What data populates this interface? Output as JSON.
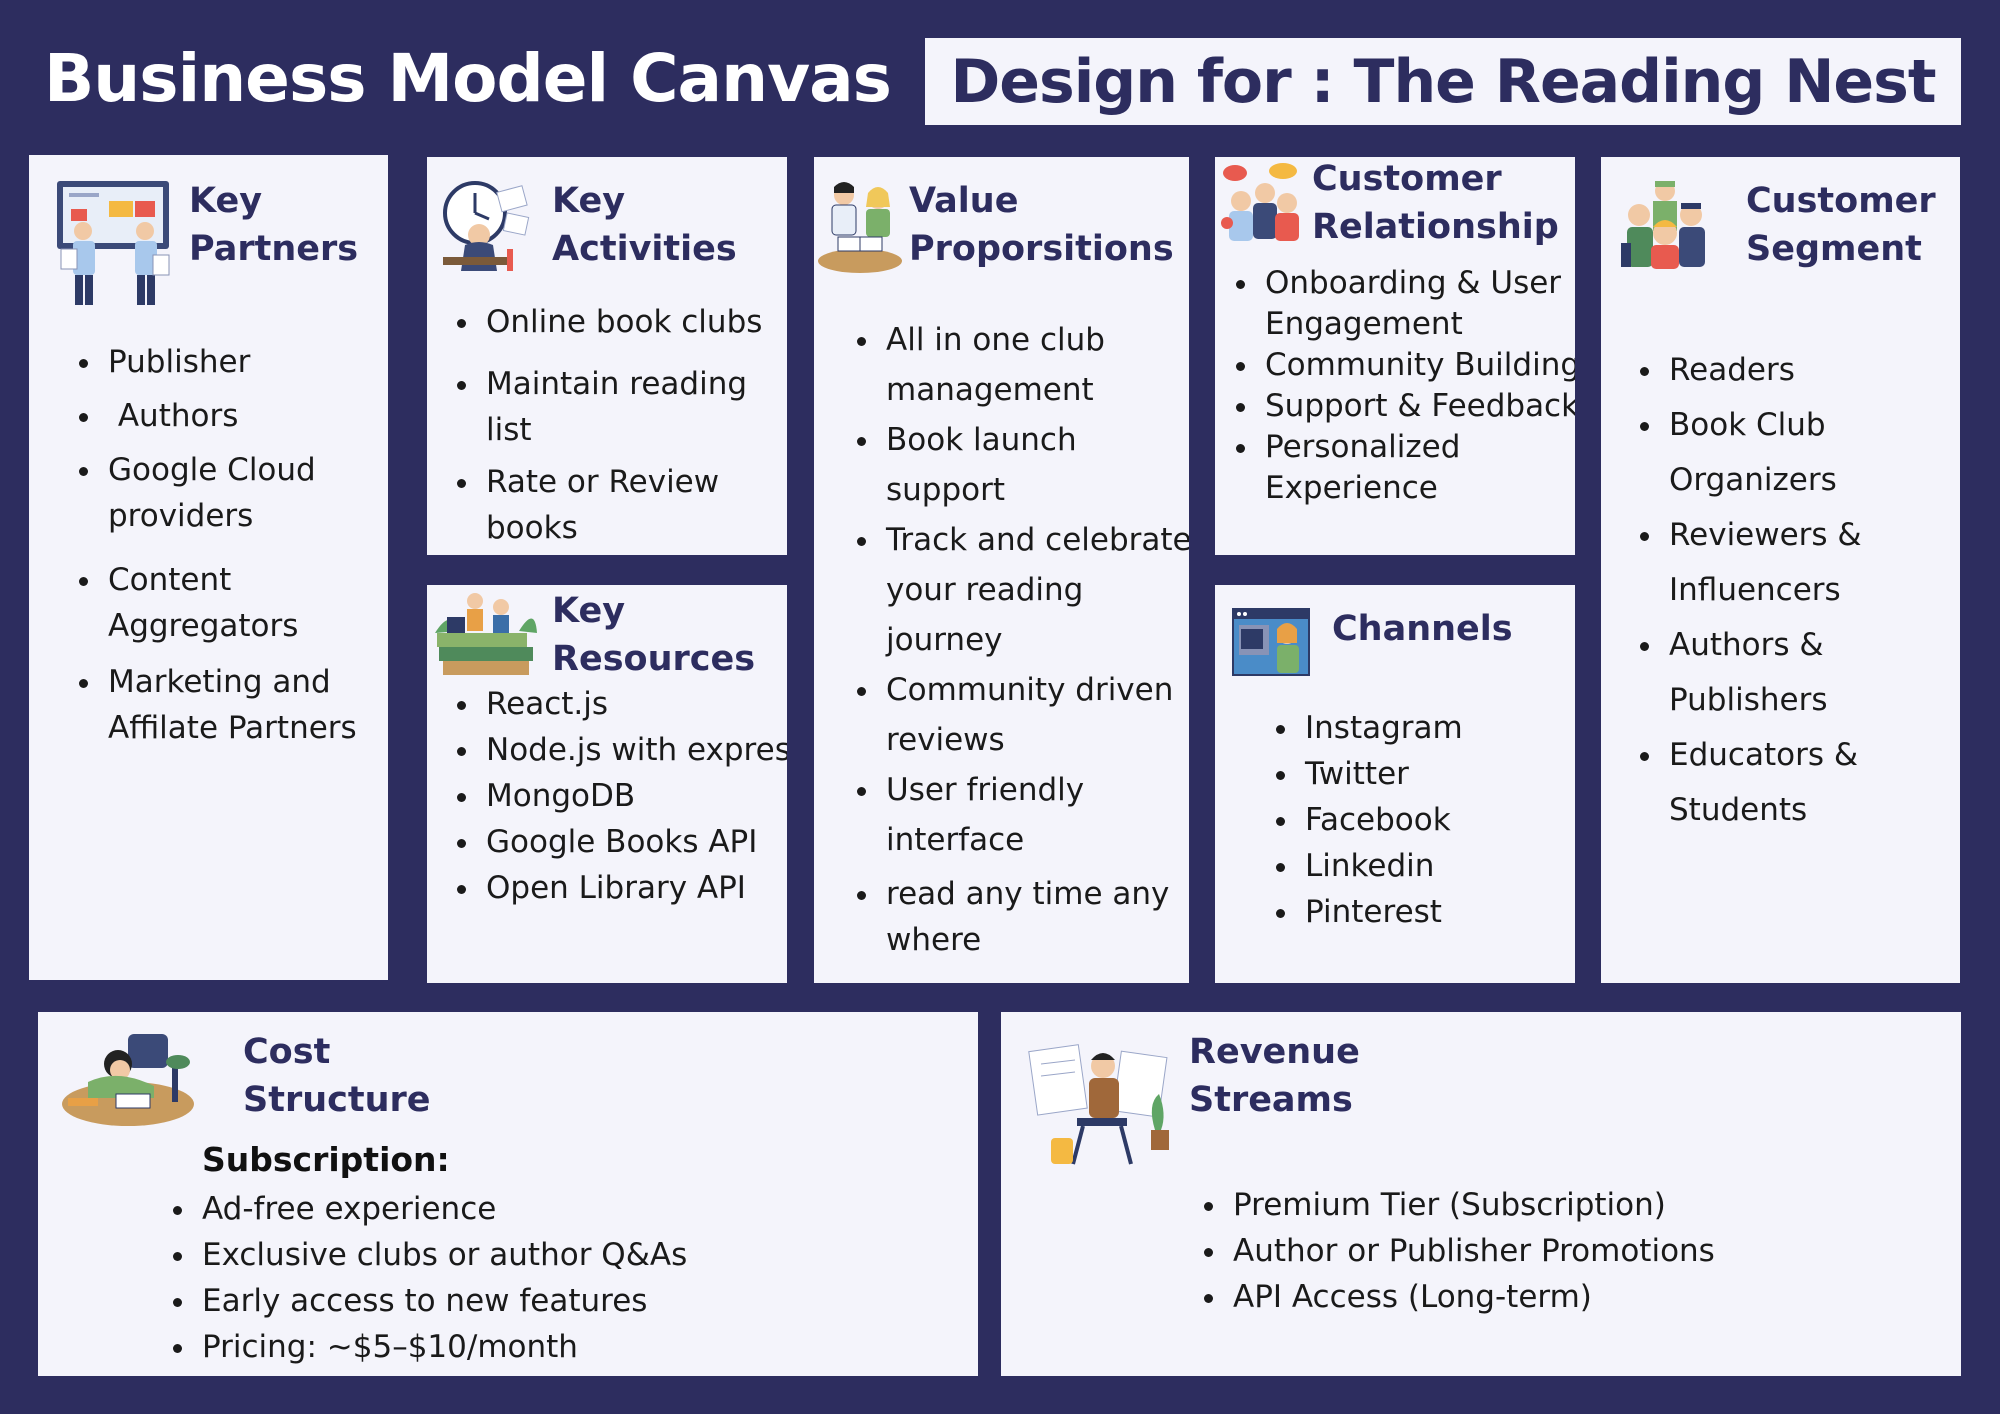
{
  "header": {
    "title": "Business Model Canvas",
    "design_for": "Design for : The Reading Nest"
  },
  "sections": {
    "key_partners": {
      "title_l1": "Key",
      "title_l2": "Partners",
      "icon": "strategy-meeting-icon",
      "items": [
        "Publisher",
        " Authors",
        "Google Cloud providers",
        "Content Aggregators",
        "Marketing and Affilate Partners"
      ]
    },
    "key_activities": {
      "title_l1": "Key",
      "title_l2": "Activities",
      "icon": "time-management-icon",
      "items": [
        "Online book clubs",
        "Maintain reading list",
        "Rate or Review books"
      ]
    },
    "key_resources": {
      "title_l1": "Key",
      "title_l2": "Resources",
      "icon": "books-stack-icon",
      "items": [
        "React.js",
        "Node.js with express",
        "MongoDB",
        "Google Books API",
        "Open Library API"
      ]
    },
    "value_propositions": {
      "title_l1": "Value",
      "title_l2": "Proporsitions",
      "icon": "readers-icon",
      "items": [
        "All in one club management",
        "Book launch support",
        "Track and celebrate your reading journey",
        "Community driven reviews",
        "User friendly interface",
        "read any time any where"
      ]
    },
    "customer_relationship": {
      "title_l1": "Customer",
      "title_l2": "Relationship",
      "icon": "group-chat-icon",
      "items": [
        "Onboarding & User Engagement",
        "Community Building",
        "Support & Feedback",
        "Personalized Experience"
      ]
    },
    "channels": {
      "title": "Channels",
      "icon": "online-browser-icon",
      "items": [
        "Instagram",
        "Twitter",
        "Facebook",
        "Linkedin",
        "Pinterest"
      ]
    },
    "customer_segment": {
      "title_l1": "Customer",
      "title_l2": "Segment",
      "icon": "people-group-icon",
      "items": [
        "Readers",
        "Book Club Organizers",
        "Reviewers & Influencers",
        "Authors & Publishers",
        "Educators & Students"
      ]
    },
    "cost_structure": {
      "title_l1": "Cost",
      "title_l2": "Structure",
      "icon": "student-desk-icon",
      "subheading": "Subscription:",
      "items": [
        "Ad-free experience",
        "Exclusive clubs or author Q&As",
        "Early access to new features",
        "Pricing: ~$5–$10/month"
      ]
    },
    "revenue_streams": {
      "title_l1": "Revenue",
      "title_l2": "Streams",
      "icon": "reading-chair-icon",
      "items": [
        "Premium Tier (Subscription)",
        "Author or Publisher Promotions",
        "API Access (Long-term)"
      ]
    }
  }
}
